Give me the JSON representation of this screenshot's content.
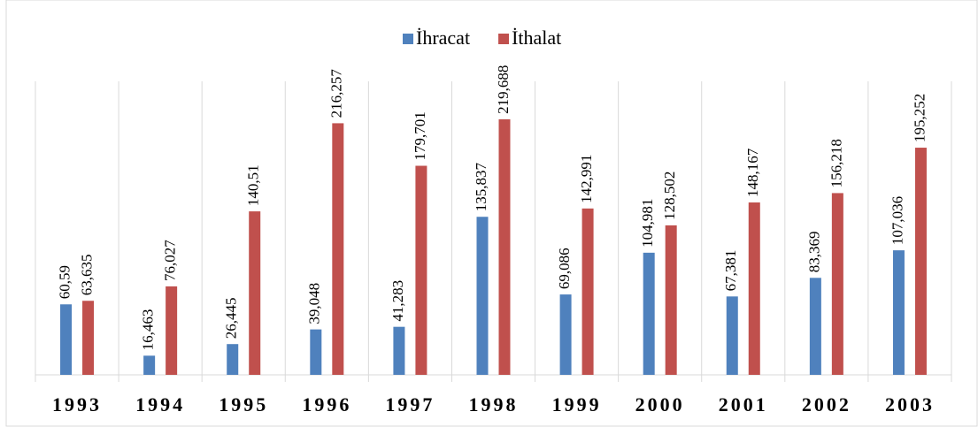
{
  "chart_data": {
    "type": "bar",
    "categories": [
      "1993",
      "1994",
      "1995",
      "1996",
      "1997",
      "1998",
      "1999",
      "2000",
      "2001",
      "2002",
      "2003"
    ],
    "series": [
      {
        "name": "İhracat",
        "color": "#4f81bd",
        "values": [
          60.59,
          16.463,
          26.445,
          39.048,
          41.283,
          135.837,
          69.086,
          104.981,
          67.381,
          83.369,
          107.036
        ],
        "value_labels": [
          "60,59",
          "16,463",
          "26,445",
          "39,048",
          "41,283",
          "135,837",
          "69,086",
          "104,981",
          "67,381",
          "83,369",
          "107,036"
        ]
      },
      {
        "name": "İthalat",
        "color": "#c0504d",
        "values": [
          63.635,
          76.027,
          140.51,
          216.257,
          179.701,
          219.688,
          142.991,
          128.502,
          148.167,
          156.218,
          195.252
        ],
        "value_labels": [
          "63,635",
          "76,027",
          "140,51",
          "216,257",
          "179,701",
          "219,688",
          "142,991",
          "128,502",
          "148,167",
          "156,218",
          "195,252"
        ]
      }
    ],
    "ylim": [
      0,
      250
    ],
    "legend": "top"
  }
}
